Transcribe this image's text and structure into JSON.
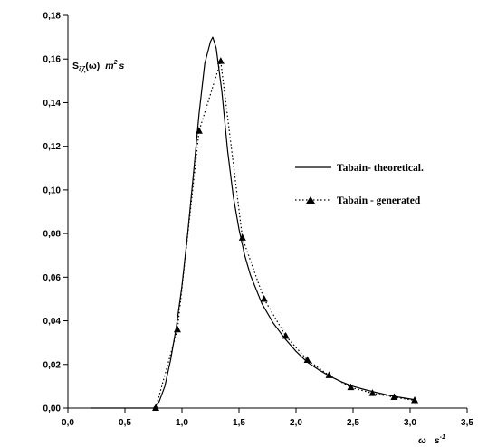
{
  "chart_data": {
    "type": "line",
    "ylabel": {
      "prefix": "S",
      "subscript": "ζζ",
      "arg": "(ω)",
      "unit": "m",
      "unit_exp": "2",
      "unit_tail": "s"
    },
    "xlabel": {
      "var": "ω",
      "unit": "s",
      "unit_exp": "-1"
    },
    "xlim": [
      0,
      3.5
    ],
    "ylim": [
      0,
      0.18
    ],
    "x_ticks": [
      0.0,
      0.5,
      1.0,
      1.5,
      2.0,
      2.5,
      3.0,
      3.5
    ],
    "x_tick_labels": [
      "0,0",
      "0,5",
      "1,0",
      "1,5",
      "2,0",
      "2,5",
      "3,0",
      "3,5"
    ],
    "y_ticks": [
      0.0,
      0.02,
      0.04,
      0.06,
      0.08,
      0.1,
      0.12,
      0.14,
      0.16,
      0.18
    ],
    "y_tick_labels": [
      "0,00",
      "0,02",
      "0,04",
      "0,06",
      "0,08",
      "0,10",
      "0,12",
      "0,14",
      "0,16",
      "0,18"
    ],
    "grid": false,
    "legend_placement": "right",
    "series": [
      {
        "name": "Tabain- theoretical.",
        "style": "solid",
        "color": "#000000",
        "x": [
          0.2,
          0.6,
          0.75,
          0.8,
          0.85,
          0.9,
          0.95,
          1.0,
          1.05,
          1.1,
          1.15,
          1.2,
          1.25,
          1.27,
          1.3,
          1.35,
          1.4,
          1.45,
          1.5,
          1.55,
          1.6,
          1.7,
          1.8,
          1.9,
          2.0,
          2.1,
          2.2,
          2.3,
          2.4,
          2.5,
          2.6,
          2.7,
          2.8,
          2.9,
          3.0,
          3.05
        ],
        "y": [
          0.0,
          0.0,
          0.0,
          0.003,
          0.01,
          0.022,
          0.037,
          0.056,
          0.08,
          0.107,
          0.135,
          0.158,
          0.168,
          0.17,
          0.165,
          0.145,
          0.118,
          0.097,
          0.082,
          0.07,
          0.061,
          0.048,
          0.039,
          0.032,
          0.026,
          0.021,
          0.0175,
          0.0145,
          0.012,
          0.01,
          0.0085,
          0.0072,
          0.006,
          0.005,
          0.0042,
          0.0038
        ]
      },
      {
        "name": "Tabain - generated",
        "style": "dotted",
        "marker": "triangle",
        "color": "#000000",
        "x": [
          0.77,
          0.96,
          1.15,
          1.34,
          1.53,
          1.72,
          1.91,
          2.1,
          2.29,
          2.48,
          2.67,
          2.86,
          3.04
        ],
        "y": [
          0.0,
          0.036,
          0.127,
          0.159,
          0.078,
          0.05,
          0.033,
          0.022,
          0.015,
          0.0095,
          0.0068,
          0.005,
          0.0035
        ]
      }
    ]
  }
}
